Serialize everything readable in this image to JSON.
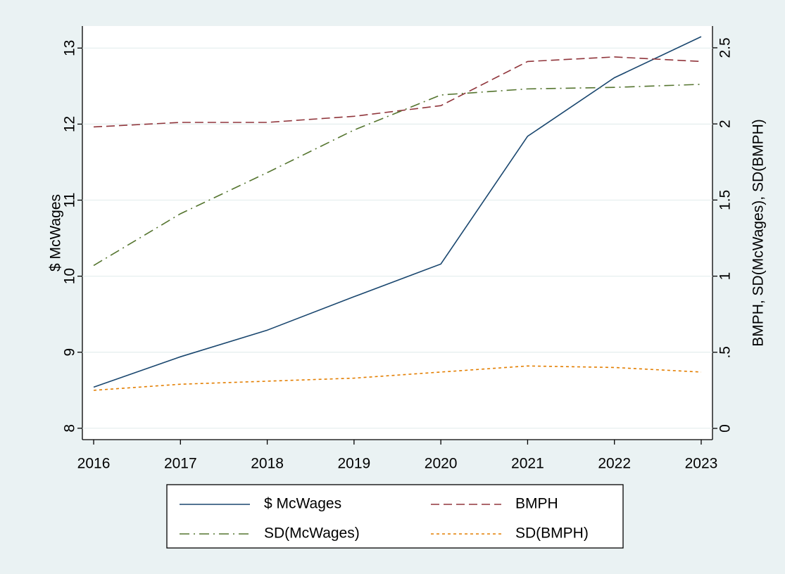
{
  "chart_data": {
    "type": "line",
    "x": [
      2016,
      2017,
      2018,
      2019,
      2020,
      2021,
      2022,
      2023
    ],
    "xlim": [
      2015.87,
      2023.13
    ],
    "xticks": [
      2016,
      2017,
      2018,
      2019,
      2020,
      2021,
      2022,
      2023
    ],
    "ylabel": "$ McWages",
    "ylim": [
      7.85,
      13.29
    ],
    "yticks": [
      8,
      9,
      10,
      11,
      12,
      13
    ],
    "y2label": "BMPH, SD(McWages), SD(BMPH)",
    "y2lim": [
      -0.074,
      2.643
    ],
    "y2ticks": [
      0,
      {
        "value": 0.5,
        "label": ".5"
      },
      1,
      1.5,
      2,
      2.5
    ],
    "grid": true,
    "legend": "bottom",
    "series": [
      {
        "name": "$ McWages",
        "color": "#1a476f",
        "dash": "solid",
        "values": [
          8.54,
          8.94,
          9.29,
          9.73,
          10.16,
          11.84,
          12.61,
          13.15
        ]
      },
      {
        "name": "BMPH",
        "color": "#90353b",
        "dash": "dashed",
        "axis": "y2",
        "values": [
          1.98,
          2.01,
          2.01,
          2.05,
          2.12,
          2.41,
          2.44,
          2.41
        ]
      },
      {
        "name": "SD(McWages)",
        "color": "#55752f",
        "dash": "dash-dot",
        "axis": "y2",
        "values": [
          1.07,
          1.41,
          1.68,
          1.96,
          2.19,
          2.23,
          2.24,
          2.26
        ]
      },
      {
        "name": "SD(BMPH)",
        "color": "#e37e00",
        "dash": "dotted",
        "axis": "y2",
        "values": [
          0.25,
          0.29,
          0.31,
          0.33,
          0.37,
          0.41,
          0.4,
          0.37
        ]
      }
    ]
  }
}
